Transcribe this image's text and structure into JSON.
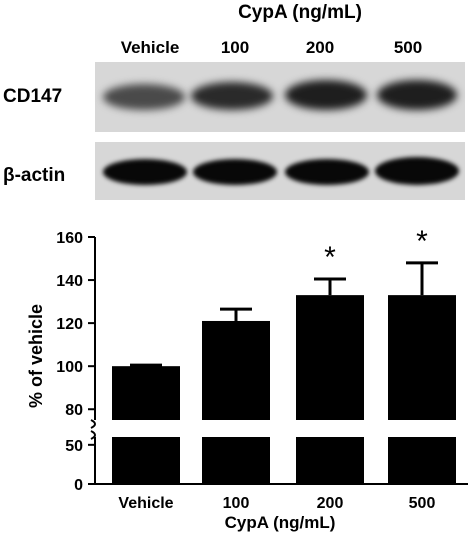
{
  "blot": {
    "title": "CypA (ng/mL)",
    "lanes": [
      "Vehicle",
      "100",
      "200",
      "500"
    ],
    "rows": [
      "CD147",
      "β-actin"
    ]
  },
  "chart_data": {
    "type": "bar",
    "categories": [
      "Vehicle",
      "100",
      "200",
      "500"
    ],
    "values": [
      100,
      121,
      133,
      133
    ],
    "errors": [
      0.5,
      5.5,
      7.5,
      15
    ],
    "significant": [
      false,
      false,
      true,
      true
    ],
    "annotation_symbol": "*",
    "xlabel": "CypA (ng/mL)",
    "ylabel": "% of vehicle",
    "ylim": [
      0,
      160
    ],
    "axis_break": [
      60,
      75
    ],
    "yticks": [
      0,
      50,
      80,
      100,
      120,
      140,
      160
    ],
    "grid": false,
    "bar_color": "#000000"
  }
}
